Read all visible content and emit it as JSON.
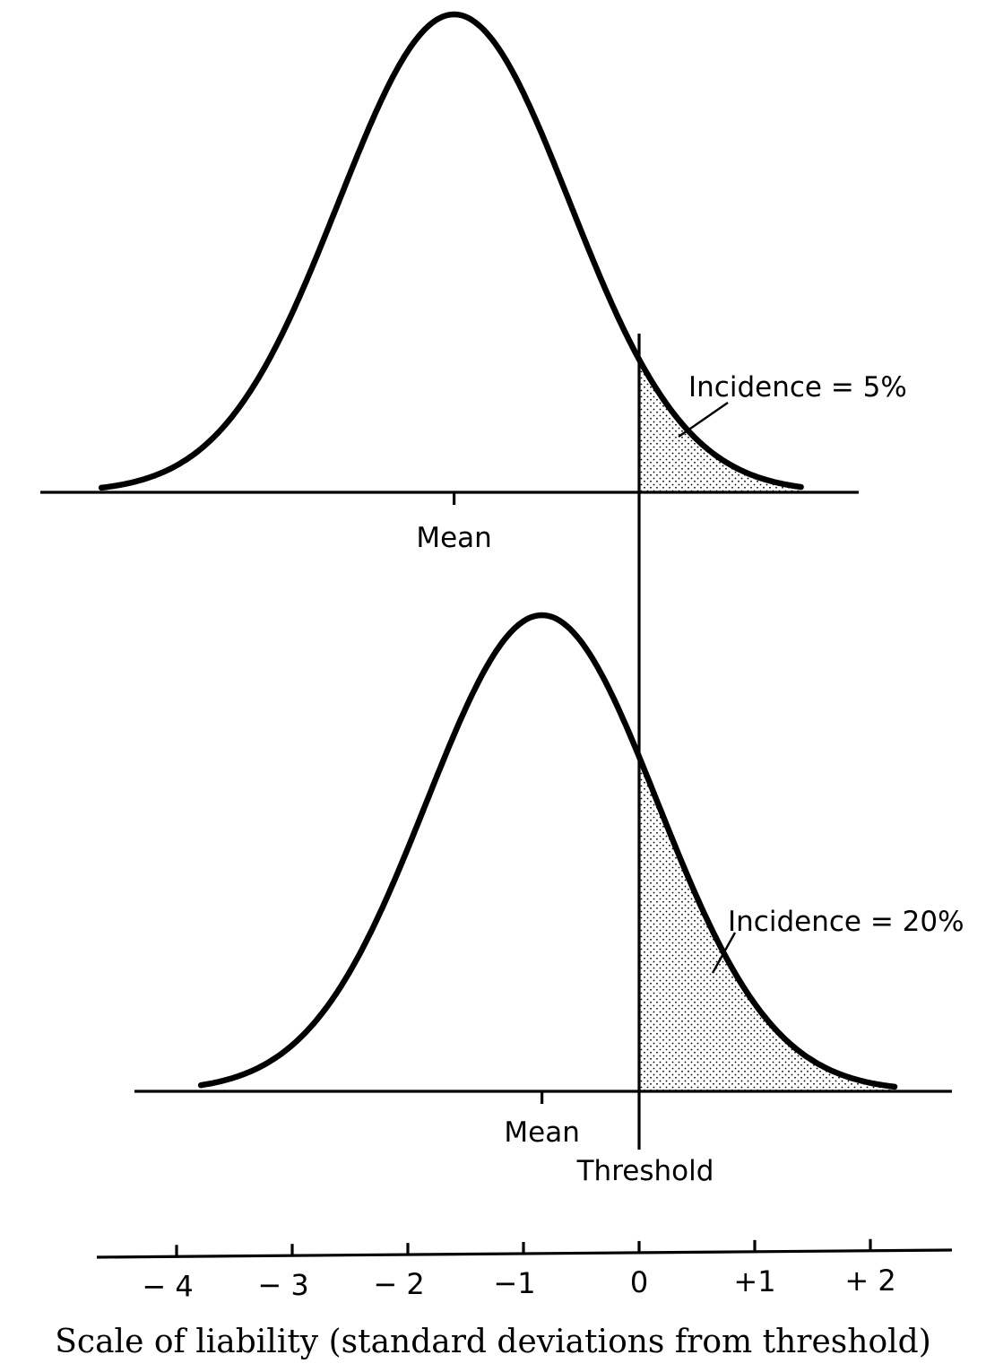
{
  "chart_data": {
    "type": "diagram",
    "panels": [
      {
        "mean": -1.6,
        "sd": 1.0,
        "incidence_label": "Incidence = 5%",
        "incidence_percent": 5,
        "mean_label": "Mean"
      },
      {
        "mean": -0.84,
        "sd": 1.0,
        "incidence_label": "Incidence = 20%",
        "incidence_percent": 20,
        "mean_label": "Mean"
      }
    ],
    "threshold_label": "Threshold",
    "threshold_value": 0,
    "scale_ticks": [
      {
        "value": -4,
        "label": "− 4"
      },
      {
        "value": -3,
        "label": "− 3"
      },
      {
        "value": -2,
        "label": "− 2"
      },
      {
        "value": -1,
        "label": "−1"
      },
      {
        "value": 0,
        "label": "0"
      },
      {
        "value": 1,
        "label": "+1"
      },
      {
        "value": 2,
        "label": "+ 2"
      }
    ],
    "xlabel": "Scale of liability (standard deviations from threshold)"
  }
}
